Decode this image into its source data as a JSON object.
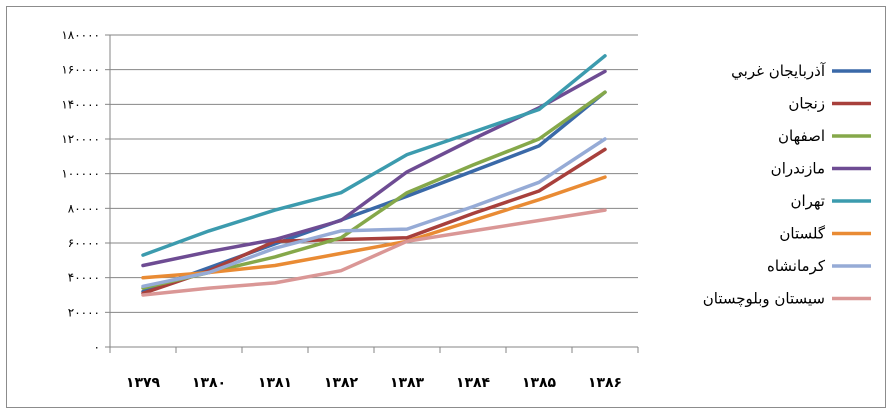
{
  "chart_data": {
    "type": "line",
    "title": "",
    "xlabel": "",
    "ylabel": "",
    "categories": [
      "۱۳۷۹",
      "۱۳۸۰",
      "۱۳۸۱",
      "۱۳۸۲",
      "۱۳۸۳",
      "۱۳۸۴",
      "۱۳۸۵",
      "۱۳۸۶"
    ],
    "ylim": [
      0,
      180000
    ],
    "yticks": [
      0,
      20000,
      40000,
      60000,
      80000,
      100000,
      120000,
      140000,
      160000,
      180000
    ],
    "ytick_labels": [
      "۰",
      "۲۰۰۰۰",
      "۴۰۰۰۰",
      "۶۰۰۰۰",
      "۸۰۰۰۰",
      "۱۰۰۰۰۰",
      "۱۲۰۰۰۰",
      "۱۴۰۰۰۰",
      "۱۶۰۰۰۰",
      "۱۸۰۰۰۰"
    ],
    "grid": "horizontal",
    "legend": "right",
    "series": [
      {
        "name": "آذربایجان غربي",
        "color": "#3A69A8",
        "values": [
          32000,
          null,
          null,
          null,
          87000,
          null,
          116000,
          147000
        ]
      },
      {
        "name": "زنجان",
        "color": "#A8403C",
        "values": [
          31000,
          44000,
          61000,
          62000,
          63000,
          77000,
          90000,
          114000
        ]
      },
      {
        "name": "اصفهان",
        "color": "#85A84A",
        "values": [
          34000,
          43000,
          52000,
          63000,
          89000,
          105000,
          120000,
          147000
        ]
      },
      {
        "name": "مازندران",
        "color": "#6E4C93",
        "values": [
          47000,
          55000,
          62000,
          73000,
          101000,
          120000,
          138000,
          159000
        ]
      },
      {
        "name": "تهران",
        "color": "#3C9BAE",
        "values": [
          53000,
          67000,
          79000,
          89000,
          111000,
          124000,
          137000,
          168000
        ]
      },
      {
        "name": "گلستان",
        "color": "#E98B34",
        "values": [
          40000,
          43000,
          47000,
          54000,
          61000,
          73000,
          85000,
          98000
        ]
      },
      {
        "name": "کرمانشاه",
        "color": "#96ABD6",
        "values": [
          35000,
          43000,
          57000,
          67000,
          68000,
          81000,
          95000,
          120000
        ]
      },
      {
        "name": "سیستان وبلوچستان",
        "color": "#DA9796",
        "values": [
          30000,
          34000,
          37000,
          44000,
          61000,
          67000,
          73000,
          79000
        ]
      }
    ]
  }
}
